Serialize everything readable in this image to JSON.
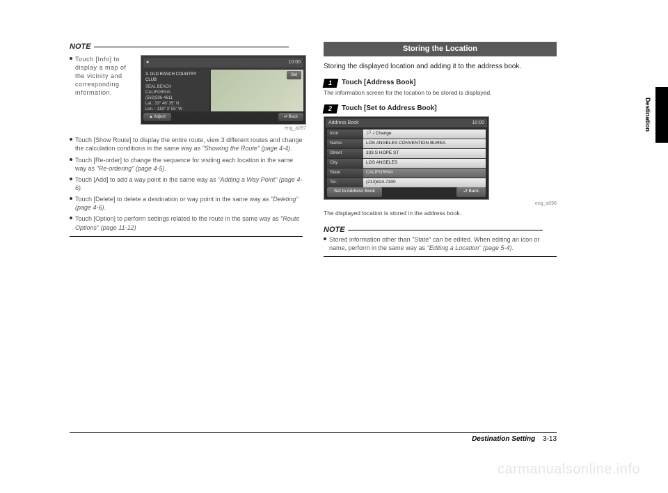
{
  "left": {
    "noteTitle": "NOTE",
    "infoBullet": "Touch [Info] to display a map of the vicinity and corresponding information.",
    "imgCaption1": "eng_a097",
    "bullets": [
      {
        "t": "Touch [Show Route] to display the entire route, view 3 different routes and change the calculation conditions in the same way as ",
        "i": "\"Showing the Route\" (page 4-4)",
        "p": "."
      },
      {
        "t": "Touch [Re-order] to change the sequence for visiting each location in the same way as ",
        "i": "\"Re-ordering\" (page 4-5)",
        "p": "."
      },
      {
        "t": "Touch [Add] to add a way point in the same way as ",
        "i": "\"Adding a Way Point\" (page 4-6)",
        "p": "."
      },
      {
        "t": "Touch [Delete] to delete a destination or way point in the same way as ",
        "i": "\"Deleting\" (page 4-6)",
        "p": "."
      },
      {
        "t": "Touch [Option] to perform settings related to the route in the same way as ",
        "i": "\"Route Options\" (page 11-12)",
        "p": ""
      }
    ],
    "shot1": {
      "time": "10:00",
      "panelTitle": "3. OLD RANCH COUNTRY CLUB",
      "panelLines": [
        "SEAL BEACH",
        "CALIFORNIA",
        "(562)596-4611",
        "Lat.: 33° 46' 35\" N",
        "Lon.: -118° 3' 55\" W"
      ],
      "setBtn": "Set",
      "leftBtn": "▲ Adjust",
      "rightBtn": "⮐ Back"
    }
  },
  "right": {
    "header": "Storing the Location",
    "intro": "Storing the displayed location and adding it to the address book.",
    "step1Label": "Touch [Address Book]",
    "step1Desc": "The information screen for the location to be stored is displayed.",
    "step2Label": "Touch [Set to Address Book]",
    "imgCaption2": "eng_a098",
    "shot2": {
      "title": "Address Book",
      "time": "10:00",
      "rows": [
        {
          "lbl": "Icon",
          "val": "🏳  / Change"
        },
        {
          "lbl": "Name",
          "val": "LOS ANGELES CONVENTION BUREA"
        },
        {
          "lbl": "Street",
          "val": "333 S HOPE ST"
        },
        {
          "lbl": "City",
          "val": "LOS ANGELES"
        },
        {
          "lbl": "State",
          "val": "CALIFORNIA"
        },
        {
          "lbl": "Tel.",
          "val": "(213)624-7300"
        }
      ],
      "btmLeft": "Set to Address Book",
      "btmRight": "⮐ Back"
    },
    "afterShot": "The displayed location is stored in the address book.",
    "noteTitle": "NOTE",
    "noteBullet": {
      "t": "Stored information other than \"State\" can be edited. When editing an icon or name, perform in the same way as ",
      "i": "\"Editing a Location\" (page 5-4)",
      "p": "."
    }
  },
  "side": "Destination",
  "footer": {
    "section": "Destination Setting",
    "page": "3-13"
  },
  "watermark": "carmanualsonline.info"
}
